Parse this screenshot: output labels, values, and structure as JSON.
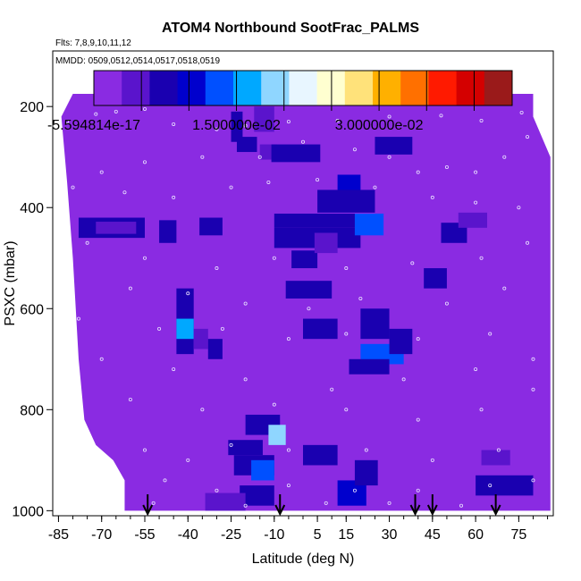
{
  "chart_data": {
    "type": "heatmap",
    "title": "ATOM4 Northbound SootFrac_PALMS",
    "subtitle_flights": "Flts: 7,8,9,10,11,12",
    "subtitle_dates": "MMDD: 0509,0512,0514,0517,0518,0519",
    "xlabel": "Latitude (deg N)",
    "ylabel": "PSXC (mbar)",
    "xlim": [
      -87,
      87
    ],
    "ylim": [
      1010,
      90
    ],
    "x_ticks": [
      -85,
      -70,
      -55,
      -40,
      -25,
      -10,
      5,
      15,
      30,
      45,
      60,
      75
    ],
    "x_minor_step": 5,
    "y_ticks": [
      200,
      400,
      600,
      800,
      1000
    ],
    "colorbar": {
      "min": -5.594814e-17,
      "max": 0.044,
      "labels": [
        {
          "value": -5.594814e-17,
          "text": "-5.594814e-17"
        },
        {
          "value": 0.015,
          "text": "1.500000e-02"
        },
        {
          "value": 0.03,
          "text": "3.000000e-02"
        }
      ],
      "tick_values": [
        0.005,
        0.01,
        0.015,
        0.02,
        0.025,
        0.03,
        0.035,
        0.04
      ],
      "colors": [
        "#8a2be2",
        "#5a14cc",
        "#1a00b0",
        "#0000cd",
        "#0050ff",
        "#00a8ff",
        "#8fd6ff",
        "#e8f6ff",
        "#ffffd0",
        "#ffe27a",
        "#ffb000",
        "#ff7000",
        "#ff1a00",
        "#d40000",
        "#9a1a1a"
      ]
    },
    "background_color": "#8a2be2",
    "profile_boundary": [
      [
        -62,
        1000
      ],
      [
        -62,
        940
      ],
      [
        -66,
        900
      ],
      [
        -72,
        870
      ],
      [
        -76,
        820
      ],
      [
        -78,
        700
      ],
      [
        -79,
        600
      ],
      [
        -80,
        500
      ],
      [
        -82,
        350
      ],
      [
        -84,
        220
      ],
      [
        -80,
        175
      ],
      [
        80,
        175
      ],
      [
        80,
        220
      ],
      [
        86,
        300
      ],
      [
        86,
        1000
      ]
    ],
    "blobs": [
      {
        "x": [
          -78,
          -55
        ],
        "y": [
          420,
          460
        ],
        "v": 0.006
      },
      {
        "x": [
          -72,
          -58
        ],
        "y": [
          428,
          452
        ],
        "v": 0.003
      },
      {
        "x": [
          -50,
          -44
        ],
        "y": [
          425,
          470
        ],
        "v": 0.005
      },
      {
        "x": [
          -36,
          -28
        ],
        "y": [
          420,
          455
        ],
        "v": 0.005
      },
      {
        "x": [
          -44,
          -38
        ],
        "y": [
          560,
          690
        ],
        "v": 0.007
      },
      {
        "x": [
          -44,
          -38
        ],
        "y": [
          620,
          660
        ],
        "v": 0.016
      },
      {
        "x": [
          -38,
          -33
        ],
        "y": [
          640,
          680
        ],
        "v": 0.004
      },
      {
        "x": [
          -33,
          -28
        ],
        "y": [
          660,
          700
        ],
        "v": 0.005
      },
      {
        "x": [
          -25,
          -21
        ],
        "y": [
          210,
          270
        ],
        "v": 0.005
      },
      {
        "x": [
          -23,
          -16
        ],
        "y": [
          260,
          290
        ],
        "v": 0.005
      },
      {
        "x": [
          -17,
          -10
        ],
        "y": [
          200,
          250
        ],
        "v": 0.004
      },
      {
        "x": [
          -15,
          -9
        ],
        "y": [
          275,
          305
        ],
        "v": 0.004
      },
      {
        "x": [
          -11,
          6
        ],
        "y": [
          275,
          310
        ],
        "v": 0.007
      },
      {
        "x": [
          -4,
          5
        ],
        "y": [
          485,
          520
        ],
        "v": 0.006
      },
      {
        "x": [
          -6,
          10
        ],
        "y": [
          545,
          580
        ],
        "v": 0.006
      },
      {
        "x": [
          0,
          12
        ],
        "y": [
          620,
          660
        ],
        "v": 0.005
      },
      {
        "x": [
          -10,
          24
        ],
        "y": [
          412,
          440
        ],
        "v": 0.006
      },
      {
        "x": [
          -10,
          20
        ],
        "y": [
          440,
          480
        ],
        "v": 0.005
      },
      {
        "x": [
          18,
          28
        ],
        "y": [
          412,
          455
        ],
        "v": 0.014
      },
      {
        "x": [
          4,
          12
        ],
        "y": [
          450,
          490
        ],
        "v": 0.004
      },
      {
        "x": [
          12,
          20
        ],
        "y": [
          335,
          370
        ],
        "v": 0.008
      },
      {
        "x": [
          5,
          25
        ],
        "y": [
          365,
          410
        ],
        "v": 0.006
      },
      {
        "x": [
          20,
          35
        ],
        "y": [
          670,
          710
        ],
        "v": 0.013
      },
      {
        "x": [
          16,
          30
        ],
        "y": [
          700,
          730
        ],
        "v": 0.005
      },
      {
        "x": [
          20,
          30
        ],
        "y": [
          600,
          660
        ],
        "v": 0.006
      },
      {
        "x": [
          30,
          38
        ],
        "y": [
          640,
          690
        ],
        "v": 0.005
      },
      {
        "x": [
          25,
          38
        ],
        "y": [
          260,
          295
        ],
        "v": 0.006
      },
      {
        "x": [
          42,
          50
        ],
        "y": [
          520,
          560
        ],
        "v": 0.005
      },
      {
        "x": [
          48,
          57
        ],
        "y": [
          430,
          470
        ],
        "v": 0.005
      },
      {
        "x": [
          54,
          64
        ],
        "y": [
          410,
          440
        ],
        "v": 0.004
      },
      {
        "x": [
          -20,
          -8
        ],
        "y": [
          810,
          850
        ],
        "v": 0.006
      },
      {
        "x": [
          -12,
          -6
        ],
        "y": [
          830,
          870
        ],
        "v": 0.018
      },
      {
        "x": [
          -26,
          -14
        ],
        "y": [
          860,
          890
        ],
        "v": 0.005
      },
      {
        "x": [
          -24,
          -10
        ],
        "y": [
          890,
          930
        ],
        "v": 0.006
      },
      {
        "x": [
          -18,
          -10
        ],
        "y": [
          900,
          940
        ],
        "v": 0.012
      },
      {
        "x": [
          -22,
          -10
        ],
        "y": [
          950,
          990
        ],
        "v": 0.005
      },
      {
        "x": [
          -34,
          -20
        ],
        "y": [
          965,
          1000
        ],
        "v": 0.004
      },
      {
        "x": [
          0,
          12
        ],
        "y": [
          870,
          910
        ],
        "v": 0.006
      },
      {
        "x": [
          12,
          22
        ],
        "y": [
          940,
          990
        ],
        "v": 0.008
      },
      {
        "x": [
          18,
          26
        ],
        "y": [
          900,
          950
        ],
        "v": 0.006
      },
      {
        "x": [
          60,
          80
        ],
        "y": [
          930,
          970
        ],
        "v": 0.005
      },
      {
        "x": [
          62,
          72
        ],
        "y": [
          880,
          910
        ],
        "v": 0.004
      }
    ],
    "sample_points": [
      [
        -82,
        230
      ],
      [
        -72,
        215
      ],
      [
        -65,
        210
      ],
      [
        -55,
        205
      ],
      [
        -45,
        235
      ],
      [
        -30,
        245
      ],
      [
        -20,
        238
      ],
      [
        -5,
        230
      ],
      [
        12,
        228
      ],
      [
        30,
        220
      ],
      [
        48,
        218
      ],
      [
        62,
        228
      ],
      [
        76,
        212
      ],
      [
        78,
        260
      ],
      [
        70,
        300
      ],
      [
        60,
        330
      ],
      [
        50,
        320
      ],
      [
        40,
        330
      ],
      [
        30,
        300
      ],
      [
        18,
        285
      ],
      [
        0,
        270
      ],
      [
        -15,
        300
      ],
      [
        -35,
        300
      ],
      [
        -55,
        310
      ],
      [
        -70,
        330
      ],
      [
        -80,
        360
      ],
      [
        -62,
        370
      ],
      [
        -45,
        380
      ],
      [
        -25,
        360
      ],
      [
        -12,
        350
      ],
      [
        5,
        345
      ],
      [
        25,
        360
      ],
      [
        45,
        380
      ],
      [
        60,
        390
      ],
      [
        75,
        400
      ],
      [
        -75,
        470
      ],
      [
        -55,
        500
      ],
      [
        -30,
        520
      ],
      [
        -10,
        500
      ],
      [
        15,
        520
      ],
      [
        38,
        510
      ],
      [
        62,
        500
      ],
      [
        78,
        470
      ],
      [
        -60,
        560
      ],
      [
        -40,
        570
      ],
      [
        -20,
        590
      ],
      [
        2,
        600
      ],
      [
        20,
        580
      ],
      [
        50,
        590
      ],
      [
        70,
        560
      ],
      [
        -78,
        620
      ],
      [
        -50,
        640
      ],
      [
        -28,
        640
      ],
      [
        -5,
        660
      ],
      [
        15,
        650
      ],
      [
        40,
        660
      ],
      [
        65,
        650
      ],
      [
        -70,
        700
      ],
      [
        -45,
        720
      ],
      [
        -20,
        740
      ],
      [
        10,
        760
      ],
      [
        35,
        740
      ],
      [
        60,
        720
      ],
      [
        80,
        700
      ],
      [
        -60,
        780
      ],
      [
        -35,
        800
      ],
      [
        -10,
        790
      ],
      [
        15,
        800
      ],
      [
        40,
        820
      ],
      [
        62,
        800
      ],
      [
        80,
        760
      ],
      [
        -55,
        880
      ],
      [
        -40,
        900
      ],
      [
        -25,
        870
      ],
      [
        -5,
        880
      ],
      [
        22,
        880
      ],
      [
        45,
        900
      ],
      [
        68,
        880
      ],
      [
        -48,
        940
      ],
      [
        -30,
        960
      ],
      [
        -5,
        950
      ],
      [
        18,
        960
      ],
      [
        40,
        960
      ],
      [
        65,
        950
      ],
      [
        80,
        940
      ],
      [
        -52,
        985
      ],
      [
        -20,
        990
      ],
      [
        8,
        985
      ],
      [
        30,
        985
      ],
      [
        55,
        990
      ]
    ],
    "arrows_x": [
      -54,
      -8,
      39,
      45,
      67
    ]
  }
}
